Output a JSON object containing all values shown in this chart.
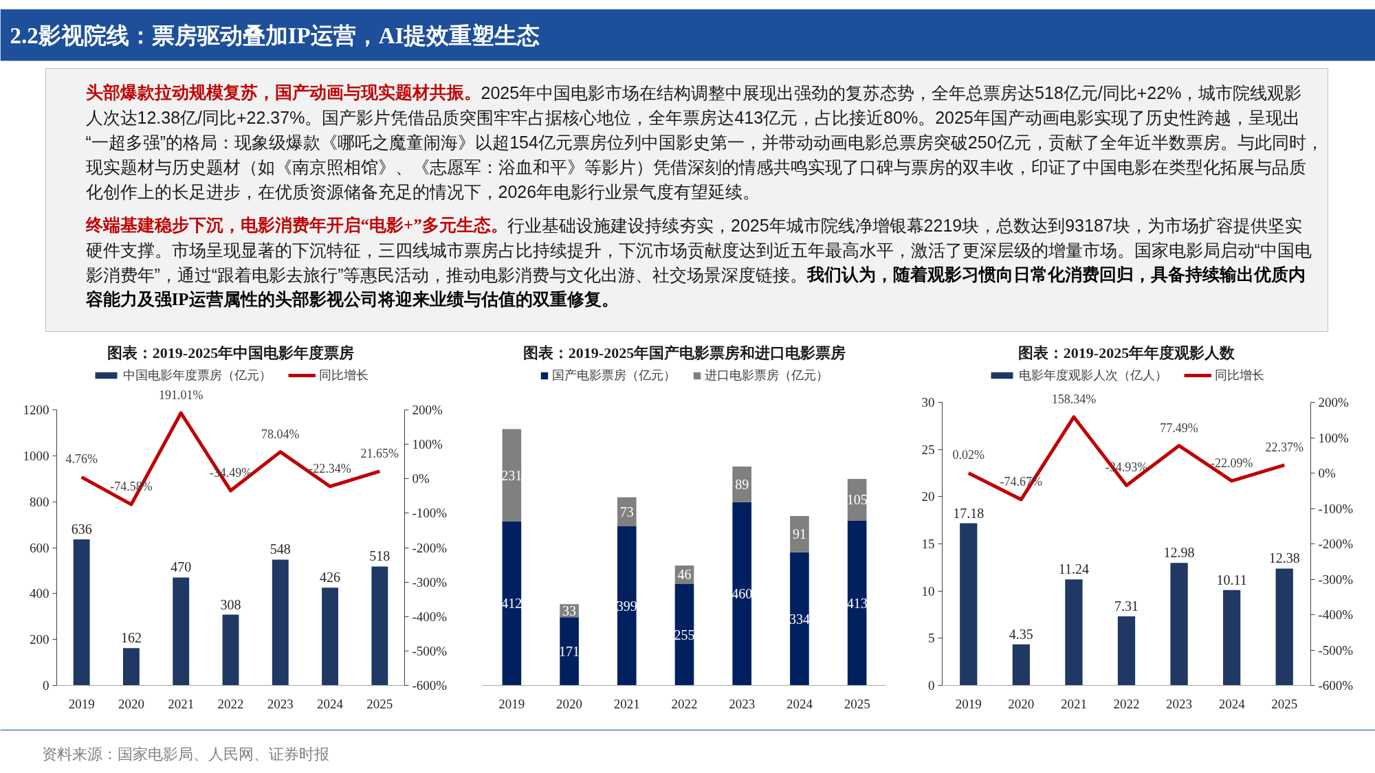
{
  "chart_data": [
    {
      "type": "other",
      "title": "2.2影视院线：票房驱动叠加IP运营，AI提效重塑生态",
      "annotations": [
        "头部爆款拉动规模复苏，国产动画与现实题材共振。",
        "2025年中国电影市场在结构调整中展现出强劲的复苏态势，全年总票房达518亿元/同比+22%，城市院线观影人次达12.38亿/同比+22.37%。国产影片凭借品质突围牢牢占据核心地位，全年票房达413亿元，占比接近80%。2025年国产动画电影实现了历史性跨越，呈现出“一超多强”的格局：现象级爆款《哪吒之魔童闹海》以超154亿元票房位列中国影史第一，并带动动画电影总票房突破250亿元，贡献了全年近半数票房。与此同时，现实题材与历史题材（如《南京照相馆》、《志愿军：浴血和平》等影片）凭借深刻的情感共鸣实现了口碑与票房的双丰收，印证了中国电影在类型化拓展与品质化创作上的长足进步，在优质资源储备充足的情况下，2026年电影行业景气度有望延续。",
        "终端基建稳步下沉，电影消费年开启“电影+”多元生态。",
        "行业基础设施建设持续夯实，2025年城市院线净增银幕2219块，总数达到93187块，为市场扩容提供坚实硬件支撑。市场呈现显著的下沉特征，三四线城市票房占比持续提升，下沉市场贡献度达到近五年最高水平，激活了更深层级的增量市场。国家电影局启动“中国电影消费年”，通过“跟着电影去旅行”等惠民活动，推动电影消费与文化出游、社交场景深度链接。",
        "我们认为，随着观影习惯向日常化消费回归，具备持续输出优质内容能力及强IP运营属性的头部影视公司将迎来业绩与估值的双重修复。"
      ]
    },
    {
      "type": "bar",
      "title": "图表：2019-2025年中国电影年度票房",
      "categories": [
        "2019",
        "2020",
        "2021",
        "2022",
        "2023",
        "2024",
        "2025"
      ],
      "series": [
        {
          "name": "中国电影年度票房（亿元）",
          "color": "#1f3864",
          "values": [
            636,
            162,
            470,
            308,
            548,
            426,
            518
          ]
        },
        {
          "name": "同比增长",
          "type": "line",
          "axis": "y2",
          "color": "#c00000",
          "values": [
            4.76,
            -74.58,
            191.01,
            -34.49,
            78.04,
            -22.34,
            21.65
          ],
          "value_labels": [
            "4.76%",
            "-74.58%",
            "191.01%",
            "-34.49%",
            "78.04%",
            "-22.34%",
            "21.65%"
          ]
        }
      ],
      "ylim": [
        0,
        1200
      ],
      "yticks": [
        0,
        200,
        400,
        600,
        800,
        1000,
        1200
      ],
      "y2lim": [
        -600,
        200
      ],
      "y2ticks": [
        {
          "value": -600,
          "label": "-600%"
        },
        {
          "value": -500,
          "label": "-500%"
        },
        {
          "value": -400,
          "label": "-400%"
        },
        {
          "value": -300,
          "label": "-300%"
        },
        {
          "value": -200,
          "label": "-200%"
        },
        {
          "value": -100,
          "label": "-100%"
        },
        {
          "value": 0,
          "label": "0%"
        },
        {
          "value": 100,
          "label": "100%"
        },
        {
          "value": 200,
          "label": "200%"
        }
      ],
      "data_labels": true,
      "legend": "top"
    },
    {
      "type": "bar",
      "title": "图表：2019-2025年国产电影票房和进口电影票房",
      "categories": [
        "2019",
        "2020",
        "2021",
        "2022",
        "2023",
        "2024",
        "2025"
      ],
      "stacked": true,
      "series": [
        {
          "name": "国产电影票房（亿元）",
          "color": "#002060",
          "values": [
            412,
            171,
            399,
            255,
            460,
            334,
            413
          ]
        },
        {
          "name": "进口电影票房（亿元）",
          "color": "#808080",
          "values": [
            231,
            33,
            73,
            46,
            89,
            91,
            105
          ]
        }
      ],
      "data_labels": true,
      "tick_labels": "x",
      "legend": "top"
    },
    {
      "type": "bar",
      "title": "图表：2019-2025年年度观影人数",
      "categories": [
        "2019",
        "2020",
        "2021",
        "2022",
        "2023",
        "2024",
        "2025"
      ],
      "series": [
        {
          "name": "电影年度观影人次（亿人）",
          "color": "#1f3864",
          "values": [
            17.18,
            4.35,
            11.24,
            7.31,
            12.98,
            10.11,
            12.38
          ]
        },
        {
          "name": "同比增长",
          "type": "line",
          "axis": "y2",
          "color": "#c00000",
          "values": [
            0.02,
            -74.67,
            158.34,
            -34.93,
            77.49,
            -22.09,
            22.37
          ],
          "value_labels": [
            "0.02%",
            "-74.67%",
            "158.34%",
            "-34.93%",
            "77.49%",
            "-22.09%",
            "22.37%"
          ]
        }
      ],
      "ylim": [
        0,
        30
      ],
      "yticks": [
        0,
        5,
        10,
        15,
        20,
        25,
        30
      ],
      "y2lim": [
        -600,
        200
      ],
      "y2ticks": [
        {
          "value": -600,
          "label": "-600%"
        },
        {
          "value": -500,
          "label": "-500%"
        },
        {
          "value": -400,
          "label": "-400%"
        },
        {
          "value": -300,
          "label": "-300%"
        },
        {
          "value": -200,
          "label": "-200%"
        },
        {
          "value": -100,
          "label": "-100%"
        },
        {
          "value": 0,
          "label": "0%"
        },
        {
          "value": 100,
          "label": "100%"
        },
        {
          "value": 200,
          "label": "200%"
        }
      ],
      "data_labels": true,
      "legend": "top",
      "annotations": [
        "资料来源：国家电影局、人民网、证券时报"
      ]
    }
  ]
}
